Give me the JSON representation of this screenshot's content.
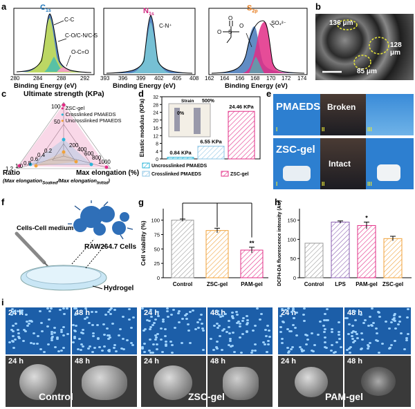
{
  "panel_letters": {
    "a": "a",
    "b": "b",
    "c": "c",
    "d": "d",
    "e": "e",
    "f": "f",
    "g": "g",
    "h": "h",
    "i": "i"
  },
  "xps": {
    "xlabel": "Binding Energy (eV)",
    "c1s": {
      "title": "C",
      "sub": "1s",
      "ticks": [
        "280",
        "284",
        "288",
        "292"
      ],
      "ann": [
        "C-C",
        "C-O/C-N/C-S",
        "O-C=O"
      ]
    },
    "n1s": {
      "title": "N",
      "sub": "1s",
      "ticks": [
        "393",
        "396",
        "399",
        "402",
        "405",
        "408"
      ],
      "ann": [
        "C-N⁺"
      ]
    },
    "s2p": {
      "title": "S",
      "sub": "2p",
      "ticks": [
        "162",
        "164",
        "166",
        "168",
        "170",
        "172",
        "174"
      ],
      "ann": [
        "SO₄²⁻"
      ]
    }
  },
  "sem_b": {
    "labels": [
      "136 μm",
      "128 μm",
      "85 μm"
    ]
  },
  "radar": {
    "title": "Ultimate strength (KPa)",
    "axis_elong": "Max elongation (%)",
    "axis_ratio": "Ratio",
    "ratio_def": "(Max elongation",
    "ratio_sub1": "Soaked",
    "ratio_mid": "/Max elongation",
    "ratio_sub2": "Initial",
    "ratio_end": ")",
    "strength_ticks": [
      "100",
      "50"
    ],
    "elong_ticks": [
      "200",
      "400",
      "600",
      "800",
      "1000"
    ],
    "ratio_ticks": [
      "0.2",
      "0.4",
      "0.6",
      "0.8",
      "1.0",
      "1.2"
    ],
    "legend": [
      "ZSC-gel",
      "Crosslinked PMAEDS",
      "Uncrosslinked PMAEDS"
    ]
  },
  "chart_data": [
    {
      "type": "bar",
      "panel": "d",
      "categories": [
        "Uncrosslinked PMAEDS",
        "Crosslinked PMAEDS",
        "ZSC-gel"
      ],
      "values": [
        0.84,
        6.55,
        24.46
      ],
      "value_labels": [
        "0.84 KPa",
        "6.55 KPa",
        "24.46 KPa"
      ],
      "ylabel": "Elastic modulus (KPa)",
      "yticks": [
        "0",
        "4",
        "8",
        "12",
        "16",
        "20",
        "24",
        "28",
        "32"
      ],
      "ylim": [
        0,
        32
      ],
      "inset": {
        "strain_label": "Strain",
        "strain_values": [
          "0%",
          "500%"
        ]
      }
    },
    {
      "type": "bar",
      "panel": "g",
      "categories": [
        "Control",
        "ZSC-gel",
        "PAM-gel"
      ],
      "values": [
        100,
        82,
        48
      ],
      "errors": [
        2,
        4,
        5
      ],
      "ylabel": "Cell viability (%)",
      "yticks": [
        "0",
        "25",
        "50",
        "75",
        "100"
      ],
      "ylim": [
        0,
        120
      ],
      "significance": "**"
    },
    {
      "type": "bar",
      "panel": "h",
      "categories": [
        "Control",
        "LPS",
        "PAM-gel",
        "ZSC-gel"
      ],
      "values": [
        90,
        145,
        136,
        102
      ],
      "errors": [
        0,
        3,
        9,
        6
      ],
      "ylabel": "DCFH-DA fluorescence intensity (AU)",
      "yticks": [
        "0",
        "50",
        "100",
        "150"
      ],
      "ylim": [
        0,
        180
      ],
      "significance": "*"
    }
  ],
  "panel_e": {
    "top": "PMAEDS",
    "bottom": "ZSC-gel",
    "broken": "Broken",
    "intact": "Intact",
    "roman": [
      "I",
      "II",
      "III"
    ]
  },
  "panel_f": {
    "medium": "Cells-Cell medium",
    "cells": "RAW264.7 Cells",
    "hydrogel": "Hydrogel"
  },
  "panel_i": {
    "t1": "24 h",
    "t2": "48 h",
    "groups": [
      "Control",
      "ZSC-gel",
      "PAM-gel"
    ]
  },
  "colors": {
    "xps_blue": "#3a6fb5",
    "title_c": "#1b75bc",
    "title_n": "#d0277f",
    "title_s": "#e67817",
    "pink": "#e22d86",
    "cyan": "#2cb5d8",
    "orange": "#f0a23a",
    "purple": "#8a5fb0"
  }
}
